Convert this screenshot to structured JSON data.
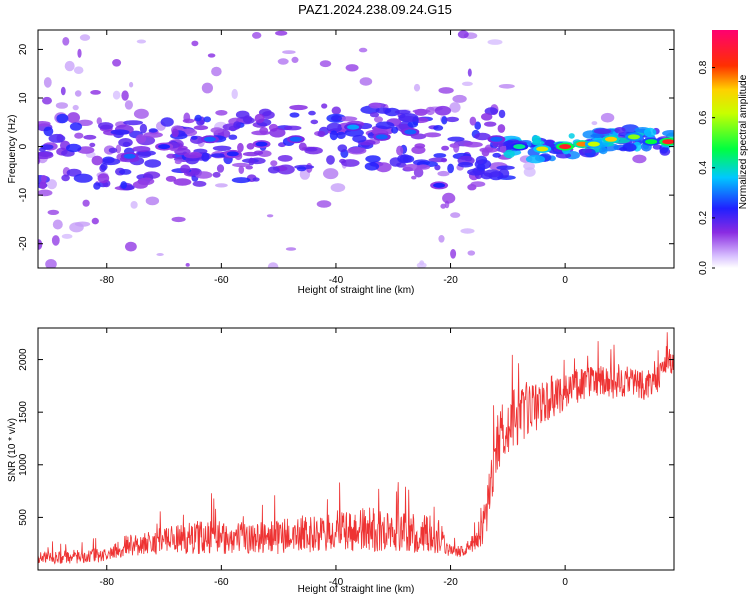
{
  "title": "PAZ1.2024.238.09.24.G15",
  "colors": {
    "snr_line": "#ee3333",
    "axes": "#000000",
    "background": "#ffffff"
  },
  "chart_data": [
    {
      "type": "heatmap",
      "xlabel": "Height of straight line (km)",
      "ylabel": "Frequency (Hz)",
      "xlim": [
        -92,
        19
      ],
      "ylim": [
        -25,
        24
      ],
      "xticks": [
        -80,
        -60,
        -40,
        -20,
        0
      ],
      "yticks": [
        -20,
        -10,
        0,
        10,
        20
      ],
      "colorbar": {
        "label": "Normalized spectral amplitude",
        "range": [
          0.0,
          0.95
        ],
        "ticks": [
          0.0,
          0.2,
          0.4,
          0.6,
          0.8
        ],
        "colormap": "rainbow (white-violet-blue-cyan-green-yellow-red-magenta)"
      },
      "ridge_path": [
        [
          -90,
          -1
        ],
        [
          -80,
          -1.5
        ],
        [
          -75,
          -2
        ],
        [
          -70,
          -1
        ],
        [
          -65,
          -1
        ],
        [
          -60,
          0
        ],
        [
          -55,
          0
        ],
        [
          -50,
          1
        ],
        [
          -45,
          1.5
        ],
        [
          -40,
          3
        ],
        [
          -35,
          3
        ],
        [
          -30,
          2.5
        ],
        [
          -25,
          2
        ],
        [
          -20,
          1.5
        ],
        [
          -15,
          1
        ],
        [
          -12,
          0.5
        ],
        [
          -10,
          0
        ],
        [
          -6,
          -0.5
        ],
        [
          -4,
          -0.5
        ],
        [
          0,
          0
        ],
        [
          4,
          0.5
        ],
        [
          8,
          1.5
        ],
        [
          12,
          1.8
        ],
        [
          16,
          1
        ],
        [
          19,
          1
        ]
      ],
      "peaks": [
        {
          "x": -76,
          "y": -2,
          "amp": 0.3
        },
        {
          "x": -70,
          "y": 0,
          "amp": 0.25
        },
        {
          "x": -62,
          "y": 1.5,
          "amp": 0.3
        },
        {
          "x": -58,
          "y": -1.5,
          "amp": 0.25
        },
        {
          "x": -53,
          "y": 0.5,
          "amp": 0.25
        },
        {
          "x": -47,
          "y": 1.5,
          "amp": 0.3
        },
        {
          "x": -37,
          "y": 4,
          "amp": 0.35
        },
        {
          "x": -32,
          "y": 2,
          "amp": 0.3
        },
        {
          "x": -27,
          "y": 3,
          "amp": 0.3
        },
        {
          "x": -22,
          "y": -8,
          "amp": 0.25
        },
        {
          "x": -12,
          "y": 1.5,
          "amp": 0.3
        },
        {
          "x": -8,
          "y": 0,
          "amp": 0.45
        },
        {
          "x": -4,
          "y": -0.5,
          "amp": 0.7
        },
        {
          "x": 0,
          "y": 0,
          "amp": 0.9
        },
        {
          "x": 3,
          "y": 0.5,
          "amp": 0.8
        },
        {
          "x": 5,
          "y": 0.5,
          "amp": 0.65
        },
        {
          "x": 8,
          "y": 1.5,
          "amp": 0.75
        },
        {
          "x": 12,
          "y": 2,
          "amp": 0.6
        },
        {
          "x": 15,
          "y": 1,
          "amp": 0.5
        },
        {
          "x": 18,
          "y": 1,
          "amp": 0.9
        }
      ]
    },
    {
      "type": "line",
      "xlabel": "Height of straight line (km)",
      "ylabel": "SNR (10 * v/v)",
      "xlim": [
        -92,
        19
      ],
      "ylim": [
        0,
        2300
      ],
      "xticks": [
        -80,
        -60,
        -40,
        -20,
        0
      ],
      "yticks": [
        500,
        1000,
        1500,
        2000
      ],
      "series": [
        {
          "x": [
            -92,
            -88,
            -84,
            -80,
            -77,
            -74,
            -70,
            -66,
            -62,
            -58,
            -54,
            -50,
            -46,
            -42,
            -38,
            -34,
            -30,
            -26,
            -22,
            -20,
            -18,
            -16,
            -14,
            -12,
            -10,
            -8,
            -6,
            -4,
            -2,
            0,
            2,
            4,
            6,
            8,
            10,
            12,
            14,
            16,
            18,
            19
          ],
          "values": [
            120,
            120,
            130,
            140,
            230,
            250,
            280,
            300,
            320,
            300,
            310,
            320,
            330,
            340,
            360,
            380,
            360,
            340,
            330,
            180,
            180,
            250,
            450,
            1200,
            1400,
            1450,
            1500,
            1600,
            1650,
            1700,
            1750,
            1780,
            1800,
            1750,
            1780,
            1800,
            1750,
            1800,
            2000,
            1950
          ],
          "noise": [
            60,
            60,
            70,
            70,
            100,
            110,
            130,
            150,
            170,
            150,
            150,
            170,
            170,
            180,
            200,
            220,
            200,
            190,
            180,
            50,
            50,
            90,
            200,
            300,
            300,
            280,
            250,
            220,
            200,
            180,
            170,
            160,
            160,
            160,
            150,
            150,
            140,
            130,
            120,
            100
          ]
        }
      ]
    }
  ]
}
